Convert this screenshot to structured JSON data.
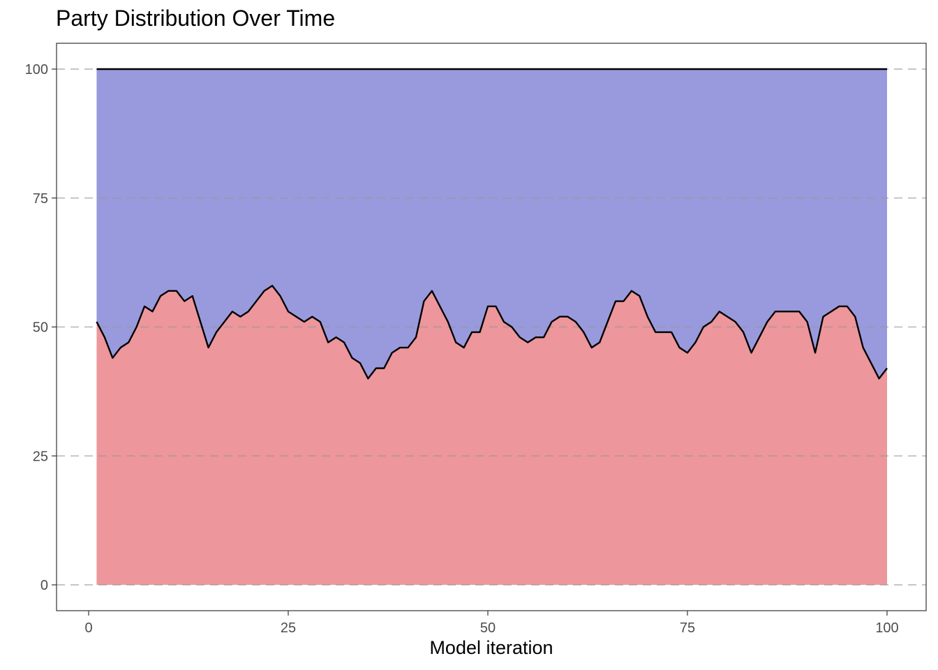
{
  "chart_data": {
    "type": "area",
    "title": "Party Distribution Over Time",
    "xlabel": "Model iteration",
    "ylabel": "",
    "xlim": [
      0,
      100
    ],
    "ylim": [
      0,
      100
    ],
    "x_ticks": [
      "0",
      "25",
      "50",
      "75",
      "100"
    ],
    "y_ticks": [
      "0",
      "25",
      "50",
      "75",
      "100"
    ],
    "grid": "horizontal dashed",
    "legend": "none",
    "colors": {
      "lower_fill": "#ED969B",
      "upper_fill": "#999ADD",
      "line": "#000000",
      "grid": "#c8c8c8"
    },
    "x": [
      1,
      2,
      3,
      4,
      5,
      6,
      7,
      8,
      9,
      10,
      11,
      12,
      13,
      14,
      15,
      16,
      17,
      18,
      19,
      20,
      21,
      22,
      23,
      24,
      25,
      26,
      27,
      28,
      29,
      30,
      31,
      32,
      33,
      34,
      35,
      36,
      37,
      38,
      39,
      40,
      41,
      42,
      43,
      44,
      45,
      46,
      47,
      48,
      49,
      50,
      51,
      52,
      53,
      54,
      55,
      56,
      57,
      58,
      59,
      60,
      61,
      62,
      63,
      64,
      65,
      66,
      67,
      68,
      69,
      70,
      71,
      72,
      73,
      74,
      75,
      76,
      77,
      78,
      79,
      80,
      81,
      82,
      83,
      84,
      85,
      86,
      87,
      88,
      89,
      90,
      91,
      92,
      93,
      94,
      95,
      96,
      97,
      98,
      99,
      100
    ],
    "series": [
      {
        "values": [
          51,
          48,
          44,
          46,
          47,
          50,
          54,
          53,
          56,
          57,
          57,
          55,
          56,
          51,
          46,
          49,
          51,
          53,
          52,
          53,
          55,
          57,
          58,
          56,
          53,
          52,
          51,
          52,
          51,
          47,
          48,
          47,
          44,
          43,
          40,
          42,
          42,
          45,
          46,
          46,
          48,
          55,
          57,
          54,
          51,
          47,
          46,
          49,
          49,
          54,
          54,
          51,
          50,
          48,
          47,
          48,
          48,
          51,
          52,
          52,
          51,
          49,
          46,
          47,
          51,
          55,
          55,
          57,
          56,
          52,
          49,
          49,
          49,
          46,
          45,
          47,
          50,
          51,
          53,
          52,
          51,
          49,
          45,
          48,
          51,
          53,
          53,
          53,
          53,
          51,
          45,
          52,
          53,
          54,
          54,
          52,
          46,
          43,
          40,
          42
        ]
      },
      {
        "values": [
          100,
          100,
          100,
          100,
          100,
          100,
          100,
          100,
          100,
          100,
          100,
          100,
          100,
          100,
          100,
          100,
          100,
          100,
          100,
          100,
          100,
          100,
          100,
          100,
          100,
          100,
          100,
          100,
          100,
          100,
          100,
          100,
          100,
          100,
          100,
          100,
          100,
          100,
          100,
          100,
          100,
          100,
          100,
          100,
          100,
          100,
          100,
          100,
          100,
          100,
          100,
          100,
          100,
          100,
          100,
          100,
          100,
          100,
          100,
          100,
          100,
          100,
          100,
          100,
          100,
          100,
          100,
          100,
          100,
          100,
          100,
          100,
          100,
          100,
          100,
          100,
          100,
          100,
          100,
          100,
          100,
          100,
          100,
          100,
          100,
          100,
          100,
          100,
          100,
          100,
          100,
          100,
          100,
          100,
          100,
          100,
          100,
          100,
          100,
          100
        ]
      }
    ]
  }
}
